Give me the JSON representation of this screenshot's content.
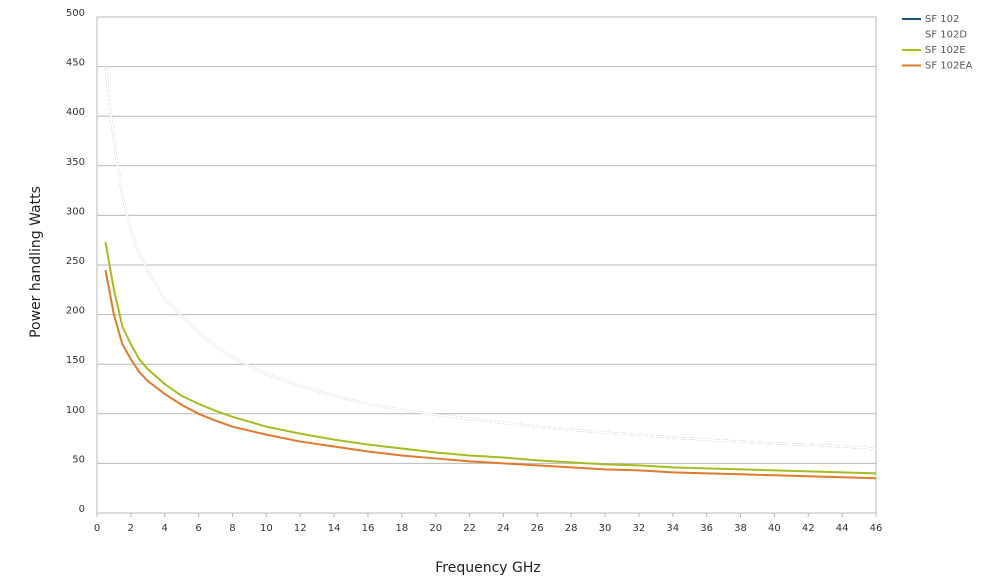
{
  "chart_data": {
    "type": "line",
    "x_label": "Frequency GHz",
    "y_label": "Power handling Watts",
    "x": [
      0.5,
      1,
      1.5,
      2,
      2.5,
      3,
      4,
      5,
      6,
      7,
      8,
      10,
      12,
      14,
      16,
      18,
      20,
      22,
      24,
      26,
      28,
      30,
      32,
      34,
      36,
      38,
      40,
      42,
      44,
      46
    ],
    "series": [
      {
        "name": "SF 102",
        "color": "#1b5083",
        "values": [
          450,
          375,
          320,
          285,
          260,
          245,
          215,
          198,
          182,
          168,
          157,
          140,
          128,
          118,
          110,
          104,
          99,
          95,
          91,
          87,
          84,
          81,
          79,
          76,
          74,
          72,
          70,
          69,
          67,
          65
        ]
      },
      {
        "name": "SF 102D",
        "color": "#ffffff",
        "values": [
          450,
          375,
          320,
          285,
          260,
          245,
          215,
          198,
          182,
          168,
          157,
          140,
          128,
          118,
          110,
          104,
          99,
          95,
          91,
          87,
          84,
          81,
          79,
          76,
          74,
          72,
          70,
          69,
          67,
          65
        ]
      },
      {
        "name": "SF 102E",
        "color": "#a5bd22",
        "values": [
          273,
          225,
          188,
          170,
          155,
          145,
          130,
          118,
          110,
          103,
          97,
          87,
          80,
          74,
          69,
          65,
          61,
          58,
          56,
          53,
          51,
          49,
          48,
          46,
          45,
          44,
          43,
          42,
          41,
          40
        ]
      },
      {
        "name": "SF 102EA",
        "color": "#e07a2c",
        "values": [
          245,
          200,
          170,
          155,
          142,
          133,
          120,
          109,
          100,
          93,
          87,
          79,
          72,
          67,
          62,
          58,
          55,
          52,
          50,
          48,
          46,
          44,
          43,
          41,
          40,
          39,
          38,
          37,
          36,
          35
        ]
      }
    ],
    "xlim": [
      0,
      46
    ],
    "xticks": [
      0,
      2,
      4,
      6,
      8,
      10,
      12,
      14,
      16,
      18,
      20,
      22,
      24,
      26,
      28,
      30,
      32,
      34,
      36,
      38,
      40,
      42,
      44,
      46
    ],
    "ylim": [
      0,
      500
    ],
    "yticks": [
      0,
      50,
      100,
      150,
      200,
      250,
      300,
      350,
      400,
      450,
      500
    ],
    "grid": true,
    "legend": "right"
  }
}
